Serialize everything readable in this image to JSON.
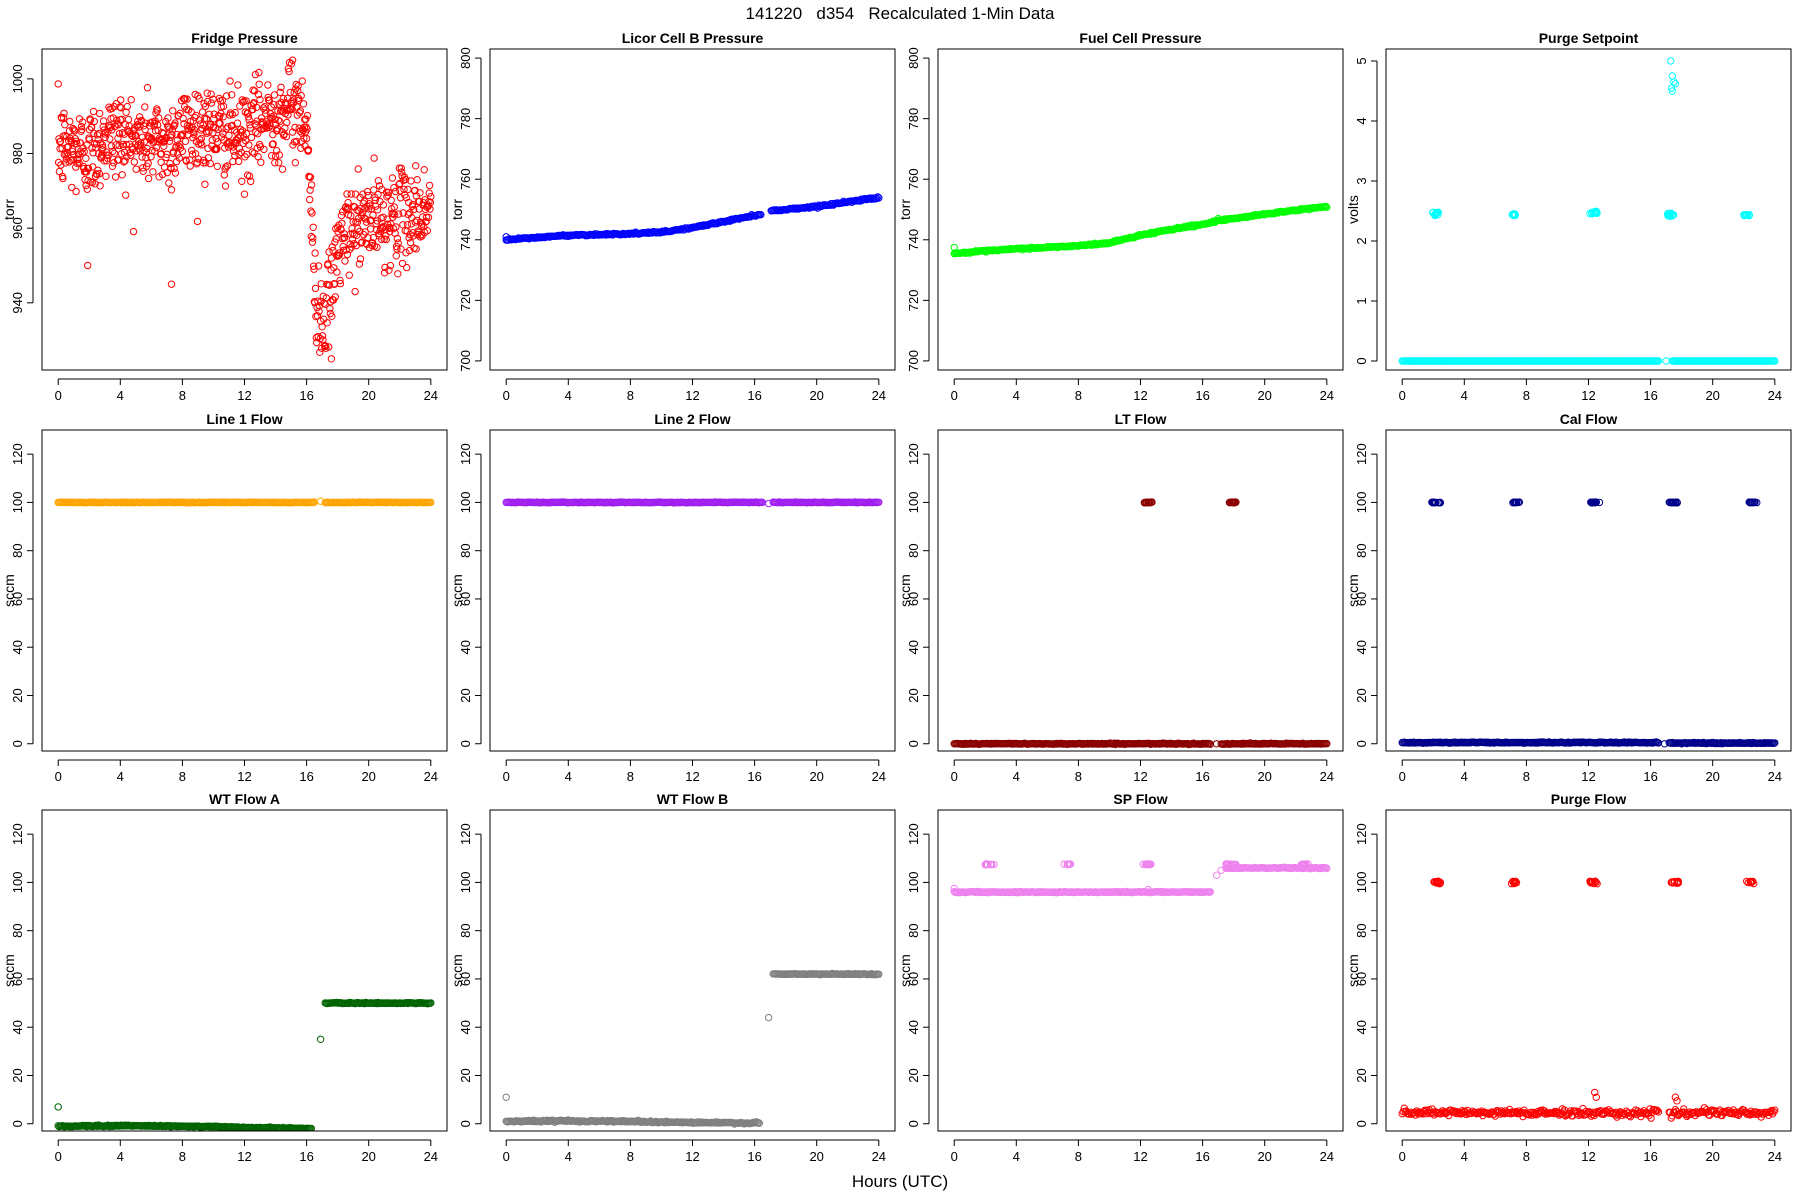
{
  "figure_title": "141220   d354   Recalculated 1-Min Data",
  "xlabel": "Hours (UTC)",
  "chart_data": [
    {
      "type": "scatter",
      "title": "Fridge Pressure",
      "ylabel": "torr",
      "color": "#ff0000",
      "xlim": [
        0,
        24
      ],
      "ylim": [
        922,
        1008
      ],
      "xticks": [
        0,
        4,
        8,
        12,
        16,
        20,
        24
      ],
      "yticks": [
        940,
        960,
        980,
        1000
      ],
      "series": [
        {
          "name": "fridge-mean",
          "x": [
            0,
            1,
            2,
            3,
            4,
            5,
            6,
            7,
            8,
            9,
            10,
            11,
            12,
            13,
            14,
            15,
            16,
            16.5,
            17,
            17.5,
            18,
            19,
            20,
            21,
            22,
            23,
            24
          ],
          "y": [
            982,
            981,
            980,
            984,
            985,
            983,
            984,
            982,
            986,
            987,
            986,
            985,
            984,
            988,
            990,
            992,
            990,
            945,
            935,
            940,
            955,
            960,
            962,
            962,
            963,
            964,
            965
          ],
          "noise": 6
        }
      ],
      "outliers": [
        {
          "x": 7.3,
          "y": 945
        },
        {
          "x": 1.9,
          "y": 950
        },
        {
          "x": 17.6,
          "y": 925
        },
        {
          "x": 15.1,
          "y": 1005
        }
      ]
    },
    {
      "type": "scatter",
      "title": "Licor Cell B Pressure",
      "ylabel": "torr",
      "color": "#0000ff",
      "xlim": [
        0,
        24
      ],
      "ylim": [
        697,
        803
      ],
      "xticks": [
        0,
        4,
        8,
        12,
        16,
        20,
        24
      ],
      "yticks": [
        700,
        720,
        740,
        760,
        780,
        800
      ],
      "series": [
        {
          "name": "licor-b",
          "x": [
            0,
            4,
            8,
            10,
            12,
            14,
            16.4,
            16.8,
            17,
            20,
            24
          ],
          "y": [
            740,
            741.5,
            742,
            742.5,
            744,
            746,
            748.5,
            null,
            749.5,
            751,
            754
          ],
          "noise": 0.4
        }
      ],
      "outliers": [
        {
          "x": 0,
          "y": 741
        }
      ]
    },
    {
      "type": "scatter",
      "title": "Fuel Cell Pressure",
      "ylabel": "torr",
      "color": "#00ff00",
      "xlim": [
        0,
        24
      ],
      "ylim": [
        697,
        803
      ],
      "xticks": [
        0,
        4,
        8,
        12,
        16,
        20,
        24
      ],
      "yticks": [
        700,
        720,
        740,
        760,
        780,
        800
      ],
      "series": [
        {
          "name": "fuel-cell",
          "x": [
            0,
            4,
            8,
            10,
            12,
            14,
            16.5,
            17,
            17.5,
            20,
            24
          ],
          "y": [
            735.5,
            737,
            738,
            739,
            741.5,
            743.5,
            745.5,
            746.5,
            746.5,
            748.5,
            751
          ],
          "noise": 0.4
        }
      ],
      "outliers": [
        {
          "x": 0,
          "y": 737.5
        },
        {
          "x": 17,
          "y": 747
        }
      ]
    },
    {
      "type": "scatter",
      "title": "Purge Setpoint",
      "ylabel": "volts",
      "color": "#00ffff",
      "xlim": [
        0,
        24
      ],
      "ylim": [
        -0.15,
        5.2
      ],
      "xticks": [
        0,
        4,
        8,
        12,
        16,
        20,
        24
      ],
      "yticks": [
        0,
        1,
        2,
        3,
        4,
        5
      ],
      "series": [
        {
          "name": "purge-base",
          "x": [
            0,
            16.5
          ],
          "y": [
            0,
            0
          ],
          "noise": 0
        },
        {
          "name": "purge-base-2",
          "x": [
            17.4,
            24
          ],
          "y": [
            0,
            0
          ],
          "noise": 0
        }
      ],
      "clusters": [
        {
          "x": 2.2,
          "y": 2.45,
          "w": 0.5,
          "h": 0.06,
          "n": 12
        },
        {
          "x": 7.2,
          "y": 2.44,
          "w": 0.3,
          "h": 0.03,
          "n": 10
        },
        {
          "x": 12.3,
          "y": 2.47,
          "w": 0.5,
          "h": 0.05,
          "n": 12
        },
        {
          "x": 17.3,
          "y": 2.44,
          "w": 0.4,
          "h": 0.06,
          "n": 12
        },
        {
          "x": 22.2,
          "y": 2.43,
          "w": 0.4,
          "h": 0.02,
          "n": 10
        }
      ],
      "outliers": [
        {
          "x": 17.3,
          "y": 5.0
        },
        {
          "x": 17.4,
          "y": 4.75
        },
        {
          "x": 17.5,
          "y": 4.65
        },
        {
          "x": 17.6,
          "y": 4.62
        },
        {
          "x": 17.35,
          "y": 4.55
        },
        {
          "x": 17.4,
          "y": 4.5
        },
        {
          "x": 17.0,
          "y": 0
        }
      ]
    },
    {
      "type": "scatter",
      "title": "Line 1 Flow",
      "ylabel": "sccm",
      "color": "#ffa500",
      "xlim": [
        0,
        24
      ],
      "ylim": [
        -3,
        130
      ],
      "xticks": [
        0,
        4,
        8,
        12,
        16,
        20,
        24
      ],
      "yticks": [
        0,
        20,
        40,
        60,
        80,
        100,
        120
      ],
      "series": [
        {
          "name": "line1-a",
          "x": [
            0,
            16.5
          ],
          "y": [
            100,
            100
          ],
          "noise": 0.2
        },
        {
          "name": "line1-b",
          "x": [
            17.2,
            24
          ],
          "y": [
            100,
            100
          ],
          "noise": 0.2
        }
      ],
      "outliers": [
        {
          "x": 16.9,
          "y": 100.5
        }
      ]
    },
    {
      "type": "scatter",
      "title": "Line 2 Flow",
      "ylabel": "sccm",
      "color": "#a020f0",
      "xlim": [
        0,
        24
      ],
      "ylim": [
        -3,
        130
      ],
      "xticks": [
        0,
        4,
        8,
        12,
        16,
        20,
        24
      ],
      "yticks": [
        0,
        20,
        40,
        60,
        80,
        100,
        120
      ],
      "series": [
        {
          "name": "line2-a",
          "x": [
            0,
            16.5
          ],
          "y": [
            100,
            100
          ],
          "noise": 0.2
        },
        {
          "name": "line2-b",
          "x": [
            17.2,
            24
          ],
          "y": [
            100,
            100
          ],
          "noise": 0.2
        }
      ],
      "outliers": [
        {
          "x": 16.9,
          "y": 99.5
        }
      ]
    },
    {
      "type": "scatter",
      "title": "LT Flow",
      "ylabel": "sccm",
      "color": "#8b0000",
      "xlim": [
        0,
        24
      ],
      "ylim": [
        -3,
        130
      ],
      "xticks": [
        0,
        4,
        8,
        12,
        16,
        20,
        24
      ],
      "yticks": [
        0,
        20,
        40,
        60,
        80,
        100,
        120
      ],
      "series": [
        {
          "name": "lt-a",
          "x": [
            0,
            16.5
          ],
          "y": [
            0,
            0
          ],
          "noise": 0.3
        },
        {
          "name": "lt-b",
          "x": [
            17.2,
            24
          ],
          "y": [
            0,
            0
          ],
          "noise": 0.3
        }
      ],
      "clusters": [
        {
          "x": 12.5,
          "y": 100,
          "w": 0.5,
          "h": 0.3,
          "n": 14
        },
        {
          "x": 17.9,
          "y": 100,
          "w": 0.5,
          "h": 0.3,
          "n": 14
        }
      ],
      "outliers": [
        {
          "x": 16.9,
          "y": 0
        }
      ]
    },
    {
      "type": "scatter",
      "title": "Cal Flow",
      "ylabel": "sccm",
      "color": "#00008b",
      "xlim": [
        0,
        24
      ],
      "ylim": [
        -3,
        130
      ],
      "xticks": [
        0,
        4,
        8,
        12,
        16,
        20,
        24
      ],
      "yticks": [
        0,
        20,
        40,
        60,
        80,
        100,
        120
      ],
      "series": [
        {
          "name": "cal-a",
          "x": [
            0,
            16.5
          ],
          "y": [
            0.5,
            0.5
          ],
          "noise": 0.3
        },
        {
          "name": "cal-b",
          "x": [
            17.2,
            24
          ],
          "y": [
            0.3,
            0.3
          ],
          "noise": 0.3
        }
      ],
      "clusters": [
        {
          "x": 2.2,
          "y": 100,
          "w": 0.6,
          "h": 0.3,
          "n": 14
        },
        {
          "x": 7.3,
          "y": 100,
          "w": 0.5,
          "h": 0.3,
          "n": 12
        },
        {
          "x": 12.4,
          "y": 100,
          "w": 0.6,
          "h": 0.3,
          "n": 14
        },
        {
          "x": 17.5,
          "y": 100,
          "w": 0.6,
          "h": 0.3,
          "n": 14
        },
        {
          "x": 22.6,
          "y": 100,
          "w": 0.5,
          "h": 0.3,
          "n": 12
        }
      ],
      "outliers": [
        {
          "x": 12.7,
          "y": 100
        },
        {
          "x": 16.9,
          "y": 0
        }
      ]
    },
    {
      "type": "scatter",
      "title": "WT Flow A",
      "ylabel": "sccm",
      "color": "#006400",
      "xlim": [
        0,
        24
      ],
      "ylim": [
        -3,
        130
      ],
      "xticks": [
        0,
        4,
        8,
        12,
        16,
        20,
        24
      ],
      "yticks": [
        0,
        20,
        40,
        60,
        80,
        100,
        120
      ],
      "series": [
        {
          "name": "wta-a",
          "x": [
            0,
            4,
            8,
            12,
            16.3
          ],
          "y": [
            -1,
            -0.8,
            -1,
            -1.5,
            -2
          ],
          "noise": 0.4
        },
        {
          "name": "wta-b",
          "x": [
            17.2,
            24
          ],
          "y": [
            50,
            50
          ],
          "noise": 0.3
        }
      ],
      "outliers": [
        {
          "x": 0,
          "y": 7
        },
        {
          "x": 16.9,
          "y": 35
        }
      ]
    },
    {
      "type": "scatter",
      "title": "WT Flow B",
      "ylabel": "sccm",
      "color": "#808080",
      "xlim": [
        0,
        24
      ],
      "ylim": [
        -3,
        130
      ],
      "xticks": [
        0,
        4,
        8,
        12,
        16,
        20,
        24
      ],
      "yticks": [
        0,
        20,
        40,
        60,
        80,
        100,
        120
      ],
      "series": [
        {
          "name": "wtb-a",
          "x": [
            0,
            4,
            8,
            12,
            16.3
          ],
          "y": [
            1,
            1.2,
            1,
            0.5,
            0.3
          ],
          "noise": 0.5
        },
        {
          "name": "wtb-b",
          "x": [
            17.2,
            24
          ],
          "y": [
            62,
            62
          ],
          "noise": 0.3
        }
      ],
      "outliers": [
        {
          "x": 0,
          "y": 11
        },
        {
          "x": 16.9,
          "y": 44
        }
      ]
    },
    {
      "type": "scatter",
      "title": "SP Flow",
      "ylabel": "sccm",
      "color": "#ee82ee",
      "xlim": [
        0,
        24
      ],
      "ylim": [
        -3,
        130
      ],
      "xticks": [
        0,
        4,
        8,
        12,
        16,
        20,
        24
      ],
      "yticks": [
        0,
        20,
        40,
        60,
        80,
        100,
        120
      ],
      "series": [
        {
          "name": "sp-a",
          "x": [
            0,
            16.5
          ],
          "y": [
            96,
            96
          ],
          "noise": 0.3
        },
        {
          "name": "sp-b",
          "x": [
            17.5,
            24
          ],
          "y": [
            106,
            106
          ],
          "noise": 0.3
        }
      ],
      "clusters": [
        {
          "x": 2.3,
          "y": 107.5,
          "w": 0.6,
          "h": 0.3,
          "n": 12
        },
        {
          "x": 7.3,
          "y": 107.5,
          "w": 0.5,
          "h": 0.3,
          "n": 10
        },
        {
          "x": 12.4,
          "y": 107.5,
          "w": 0.6,
          "h": 0.3,
          "n": 12
        },
        {
          "x": 17.8,
          "y": 107.5,
          "w": 0.7,
          "h": 0.3,
          "n": 12
        },
        {
          "x": 22.6,
          "y": 107.5,
          "w": 0.5,
          "h": 0.3,
          "n": 10
        }
      ],
      "outliers": [
        {
          "x": 0,
          "y": 97.5
        },
        {
          "x": 12.5,
          "y": 97
        },
        {
          "x": 16.9,
          "y": 103
        },
        {
          "x": 17.2,
          "y": 105
        }
      ]
    },
    {
      "type": "scatter",
      "title": "Purge Flow",
      "ylabel": "sccm",
      "color": "#ff0000",
      "xlim": [
        0,
        24
      ],
      "ylim": [
        -3,
        130
      ],
      "xticks": [
        0,
        4,
        8,
        12,
        16,
        20,
        24
      ],
      "yticks": [
        0,
        20,
        40,
        60,
        80,
        100,
        120
      ],
      "series": [
        {
          "name": "purge-a",
          "x": [
            0,
            16.5
          ],
          "y": [
            4.5,
            4.5
          ],
          "noise": 2
        },
        {
          "name": "purge-b",
          "x": [
            17.2,
            24
          ],
          "y": [
            4.5,
            4.5
          ],
          "noise": 2
        }
      ],
      "clusters": [
        {
          "x": 2.2,
          "y": 100,
          "w": 0.6,
          "h": 1.2,
          "n": 12
        },
        {
          "x": 7.2,
          "y": 100,
          "w": 0.4,
          "h": 1.0,
          "n": 10
        },
        {
          "x": 12.3,
          "y": 100,
          "w": 0.6,
          "h": 1.2,
          "n": 12
        },
        {
          "x": 17.5,
          "y": 100,
          "w": 0.6,
          "h": 1.0,
          "n": 12
        },
        {
          "x": 22.4,
          "y": 100,
          "w": 0.5,
          "h": 1.0,
          "n": 10
        }
      ],
      "outliers": [
        {
          "x": 12.4,
          "y": 13
        },
        {
          "x": 12.5,
          "y": 11
        },
        {
          "x": 17.6,
          "y": 11
        },
        {
          "x": 17.7,
          "y": 9.5
        }
      ]
    }
  ]
}
